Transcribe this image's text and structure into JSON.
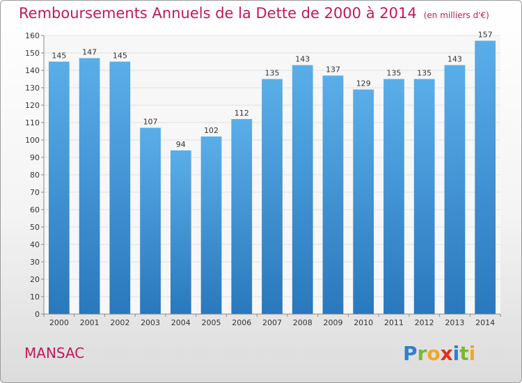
{
  "title": "Remboursements Annuels de la Dette de 2000 à 2014",
  "subtitle": "(en milliers d'€)",
  "commune": "MANSAC",
  "logo": {
    "letters": [
      {
        "char": "P",
        "color": "#2f7fd0"
      },
      {
        "char": "r",
        "color": "#7cb82f"
      },
      {
        "char": "o",
        "color": "#f5a623"
      },
      {
        "char": "x",
        "color": "#e0301e"
      },
      {
        "char": "i",
        "color": "#2f7fd0"
      },
      {
        "char": "t",
        "color": "#7cb82f"
      },
      {
        "char": "i",
        "color": "#f5a623"
      }
    ]
  },
  "colors": {
    "bar_light": "#5aaee8",
    "bar_dark": "#2a78bd",
    "accent": "#c2185b"
  },
  "chart_data": {
    "type": "bar",
    "categories": [
      "2000",
      "2001",
      "2002",
      "2003",
      "2004",
      "2005",
      "2006",
      "2007",
      "2008",
      "2009",
      "2010",
      "2011",
      "2012",
      "2013",
      "2014"
    ],
    "values": [
      145,
      147,
      145,
      107,
      94,
      102,
      112,
      135,
      143,
      137,
      129,
      135,
      135,
      143,
      157
    ],
    "ylim": [
      0,
      160
    ],
    "yticks": [
      0,
      10,
      20,
      30,
      40,
      50,
      60,
      70,
      80,
      90,
      100,
      110,
      120,
      130,
      140,
      150,
      160
    ],
    "grid": true
  }
}
